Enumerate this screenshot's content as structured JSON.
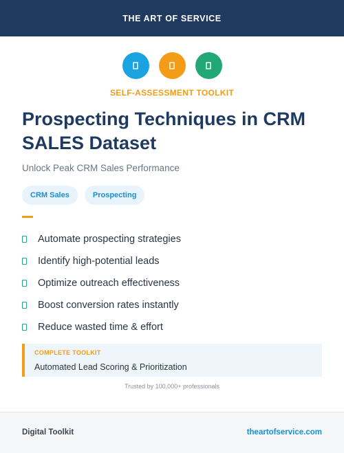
{
  "header": {
    "brand": "THE ART OF SERVICE"
  },
  "icons": [
    {
      "name": "blue-badge-icon",
      "color": "#1aa3e0"
    },
    {
      "name": "orange-badge-icon",
      "color": "#f29c17"
    },
    {
      "name": "green-badge-icon",
      "color": "#22a878"
    }
  ],
  "kicker": "SELF-ASSESSMENT TOOLKIT",
  "title": "Prospecting Techniques in CRM SALES Dataset",
  "subtitle": "Unlock Peak CRM Sales Performance",
  "tags": [
    "CRM Sales",
    "Prospecting"
  ],
  "benefits": [
    "Automate prospecting strategies",
    "Identify high-potential leads",
    "Optimize outreach effectiveness",
    "Boost conversion rates instantly",
    "Reduce wasted time & effort"
  ],
  "callout": {
    "label": "COMPLETE TOOLKIT",
    "text": "Automated Lead Scoring & Prioritization"
  },
  "trusted": "Trusted by 100,000+ professionals",
  "footer": {
    "left": "Digital Toolkit",
    "right": "theartofservice.com"
  },
  "colors": {
    "navy": "#1f3a5f",
    "accent_orange": "#f29c17",
    "accent_blue": "#1a8fd0",
    "accent_green": "#22a878"
  }
}
